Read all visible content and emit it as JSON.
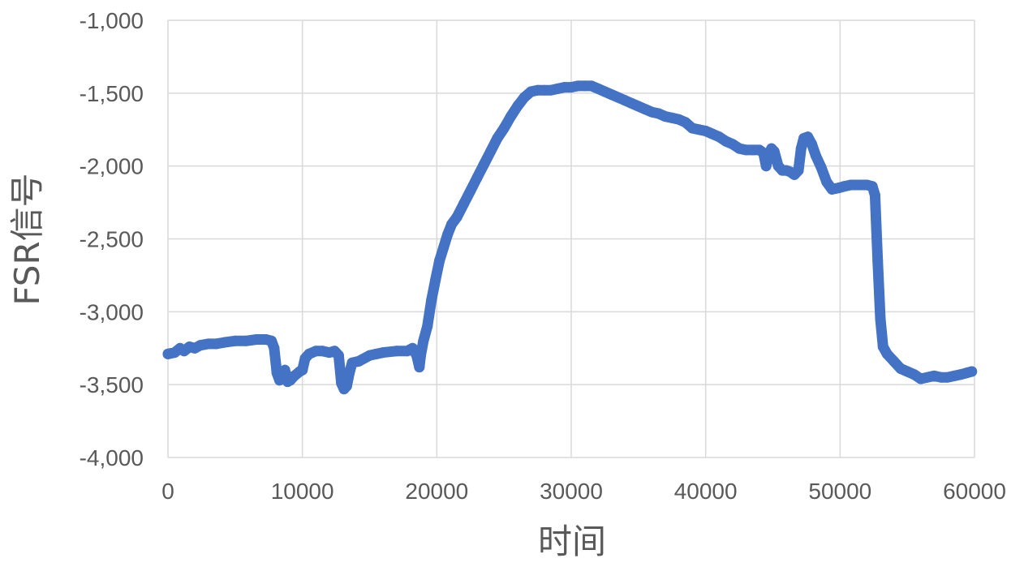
{
  "chart_data": {
    "type": "line",
    "title": "",
    "xlabel": "时间",
    "ylabel": "FSR信号",
    "xlim": [
      0,
      60000
    ],
    "ylim": [
      -4000,
      -1000
    ],
    "x_ticks": [
      0,
      10000,
      20000,
      30000,
      40000,
      50000,
      60000
    ],
    "x_tick_labels": [
      "0",
      "10000",
      "20000",
      "30000",
      "40000",
      "50000",
      "60000"
    ],
    "y_ticks": [
      -1000,
      -1500,
      -2000,
      -2500,
      -3000,
      -3500,
      -4000
    ],
    "y_tick_labels": [
      "-1,000",
      "-1,500",
      "-2,000",
      "-2,500",
      "-3,000",
      "-3,500",
      "-4,000"
    ],
    "grid": true,
    "legend": "none",
    "series_color": "#4472C4",
    "grid_color": "#d9d9d9",
    "series": [
      {
        "points": [
          [
            0,
            -3290
          ],
          [
            500,
            -3280
          ],
          [
            900,
            -3250
          ],
          [
            1200,
            -3270
          ],
          [
            1600,
            -3240
          ],
          [
            2000,
            -3250
          ],
          [
            2400,
            -3230
          ],
          [
            3000,
            -3220
          ],
          [
            3600,
            -3220
          ],
          [
            4200,
            -3210
          ],
          [
            5000,
            -3200
          ],
          [
            5800,
            -3200
          ],
          [
            6600,
            -3190
          ],
          [
            7300,
            -3190
          ],
          [
            7700,
            -3200
          ],
          [
            7900,
            -3250
          ],
          [
            8100,
            -3420
          ],
          [
            8300,
            -3470
          ],
          [
            8500,
            -3440
          ],
          [
            8700,
            -3400
          ],
          [
            8900,
            -3480
          ],
          [
            9100,
            -3470
          ],
          [
            9400,
            -3440
          ],
          [
            9800,
            -3410
          ],
          [
            10000,
            -3400
          ],
          [
            10200,
            -3320
          ],
          [
            10500,
            -3290
          ],
          [
            11000,
            -3270
          ],
          [
            11500,
            -3270
          ],
          [
            12000,
            -3280
          ],
          [
            12400,
            -3270
          ],
          [
            12700,
            -3300
          ],
          [
            12900,
            -3490
          ],
          [
            13100,
            -3530
          ],
          [
            13300,
            -3510
          ],
          [
            13500,
            -3420
          ],
          [
            13700,
            -3350
          ],
          [
            14200,
            -3340
          ],
          [
            15000,
            -3300
          ],
          [
            15500,
            -3290
          ],
          [
            16000,
            -3280
          ],
          [
            17000,
            -3270
          ],
          [
            17800,
            -3270
          ],
          [
            18200,
            -3250
          ],
          [
            18500,
            -3300
          ],
          [
            18700,
            -3380
          ],
          [
            18800,
            -3300
          ],
          [
            19000,
            -3200
          ],
          [
            19300,
            -3100
          ],
          [
            19600,
            -2920
          ],
          [
            19900,
            -2780
          ],
          [
            20200,
            -2650
          ],
          [
            20500,
            -2560
          ],
          [
            20800,
            -2470
          ],
          [
            21100,
            -2400
          ],
          [
            21500,
            -2350
          ],
          [
            22000,
            -2260
          ],
          [
            22500,
            -2170
          ],
          [
            23000,
            -2080
          ],
          [
            23500,
            -1990
          ],
          [
            24000,
            -1900
          ],
          [
            24500,
            -1810
          ],
          [
            25000,
            -1740
          ],
          [
            25500,
            -1660
          ],
          [
            26000,
            -1590
          ],
          [
            26500,
            -1530
          ],
          [
            27000,
            -1490
          ],
          [
            27500,
            -1480
          ],
          [
            28000,
            -1480
          ],
          [
            28500,
            -1480
          ],
          [
            29000,
            -1470
          ],
          [
            29500,
            -1460
          ],
          [
            30000,
            -1460
          ],
          [
            30500,
            -1450
          ],
          [
            31000,
            -1450
          ],
          [
            31500,
            -1450
          ],
          [
            32000,
            -1470
          ],
          [
            32500,
            -1490
          ],
          [
            33000,
            -1510
          ],
          [
            33500,
            -1530
          ],
          [
            34000,
            -1550
          ],
          [
            34500,
            -1570
          ],
          [
            35000,
            -1590
          ],
          [
            35500,
            -1610
          ],
          [
            36000,
            -1630
          ],
          [
            36500,
            -1640
          ],
          [
            37000,
            -1660
          ],
          [
            37500,
            -1670
          ],
          [
            38000,
            -1680
          ],
          [
            38500,
            -1700
          ],
          [
            39000,
            -1740
          ],
          [
            39500,
            -1750
          ],
          [
            40000,
            -1760
          ],
          [
            40500,
            -1780
          ],
          [
            41000,
            -1800
          ],
          [
            41500,
            -1830
          ],
          [
            42000,
            -1850
          ],
          [
            42500,
            -1880
          ],
          [
            43000,
            -1890
          ],
          [
            43500,
            -1890
          ],
          [
            44000,
            -1890
          ],
          [
            44300,
            -1910
          ],
          [
            44500,
            -2000
          ],
          [
            44700,
            -1920
          ],
          [
            44900,
            -1880
          ],
          [
            45100,
            -1900
          ],
          [
            45400,
            -2000
          ],
          [
            45700,
            -2030
          ],
          [
            46000,
            -2030
          ],
          [
            46300,
            -2040
          ],
          [
            46600,
            -2060
          ],
          [
            46900,
            -2030
          ],
          [
            47100,
            -1880
          ],
          [
            47300,
            -1810
          ],
          [
            47600,
            -1800
          ],
          [
            47900,
            -1850
          ],
          [
            48200,
            -1930
          ],
          [
            48600,
            -2010
          ],
          [
            49000,
            -2110
          ],
          [
            49400,
            -2160
          ],
          [
            49900,
            -2150
          ],
          [
            50300,
            -2140
          ],
          [
            50800,
            -2130
          ],
          [
            51300,
            -2130
          ],
          [
            52000,
            -2130
          ],
          [
            52400,
            -2140
          ],
          [
            52600,
            -2200
          ],
          [
            52800,
            -2650
          ],
          [
            53000,
            -3050
          ],
          [
            53200,
            -3240
          ],
          [
            53500,
            -3290
          ],
          [
            54000,
            -3340
          ],
          [
            54500,
            -3390
          ],
          [
            55000,
            -3410
          ],
          [
            55500,
            -3430
          ],
          [
            56000,
            -3460
          ],
          [
            56500,
            -3450
          ],
          [
            57000,
            -3440
          ],
          [
            57500,
            -3450
          ],
          [
            58000,
            -3450
          ],
          [
            58500,
            -3440
          ],
          [
            59000,
            -3430
          ],
          [
            59400,
            -3420
          ],
          [
            59800,
            -3410
          ]
        ]
      }
    ]
  }
}
